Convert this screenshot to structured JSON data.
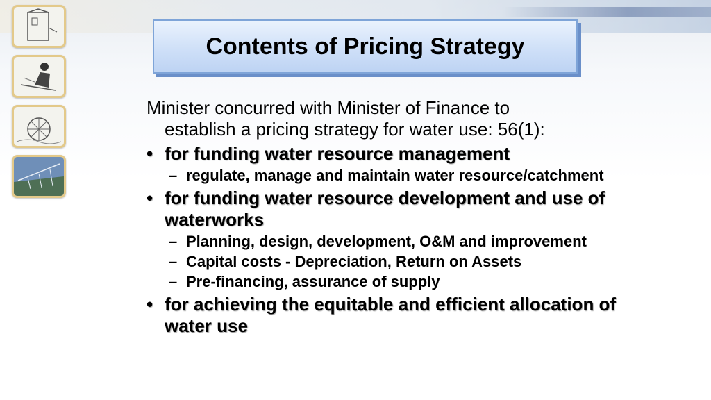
{
  "title": "Contents of Pricing Strategy",
  "intro": {
    "line1": "Minister concurred with Minister of Finance to",
    "line2": "establish a pricing strategy for water use: 56(1):"
  },
  "bullet_marker": "•",
  "dash_marker": "–",
  "bullets": [
    {
      "text": "for funding water resource management",
      "subs": [
        "regulate, manage and maintain water resource/catchment"
      ]
    },
    {
      "text": "for funding water resource development and use of waterworks",
      "subs": [
        "Planning, design, development, O&M and improvement",
        "Capital costs - Depreciation, Return on Assets",
        "Pre-financing, assurance of supply"
      ]
    },
    {
      "text": "for achieving the equitable and efficient allocation of water use",
      "subs": []
    }
  ],
  "thumbnails": [
    {
      "icon": "building-sketch-icon"
    },
    {
      "icon": "worker-sketch-icon"
    },
    {
      "icon": "waterwheel-sketch-icon"
    },
    {
      "icon": "irrigation-sketch-icon"
    }
  ]
}
